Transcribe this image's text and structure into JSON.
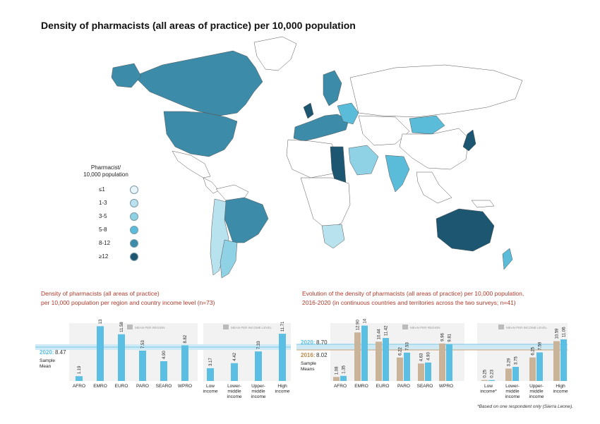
{
  "title": "Density of pharmacists (all areas of practice) per 10,000 population",
  "legend": {
    "title_line1": "Pharmacist/",
    "title_line2": "10,000 population",
    "items": [
      {
        "label": "≤1",
        "color": "#e8f4f8"
      },
      {
        "label": "1-3",
        "color": "#b9e2ef"
      },
      {
        "label": "3-5",
        "color": "#8fd2e6"
      },
      {
        "label": "5-8",
        "color": "#5bbcd9"
      },
      {
        "label": "8-12",
        "color": "#3c8ba8"
      },
      {
        "label": "≥12",
        "color": "#1d5670"
      }
    ]
  },
  "left_panel": {
    "subtitle_line1": "Density of pharmacists (all areas of practice)",
    "subtitle_line2": "per 10,000 population per region and country income level (n=73)",
    "region_icon_label": "MEAN PER REGION",
    "income_icon_label": "MEAN PER INCOME LEVEL",
    "mean_year": "2020:",
    "mean_value": "8.47",
    "mean_label_line1": "Sample",
    "mean_label_line2": "Mean"
  },
  "right_panel": {
    "subtitle_line1": "Evolution of the density of pharmacists (all areas of practice) per 10,000 population,",
    "subtitle_line2": "2016-2020 (in continuous countries and territories across the two surveys; n=41)",
    "region_icon_label": "MEAN PER REGION",
    "income_icon_label": "MEAN PER INCOME LEVEL",
    "mean_2020_year": "2020:",
    "mean_2020_value": "8.70",
    "mean_2016_year": "2016:",
    "mean_2016_value": "8.02",
    "mean_label_line1": "Sample",
    "mean_label_line2": "Means"
  },
  "footnote": "*Based on one respondent only (Sierra Leone).",
  "colors": {
    "bar2020": "#5bbfe3",
    "bar2016": "#c9b49a",
    "mean_band": "#cfeaf5",
    "panel_bg": "#f2f2f2",
    "subtitle": "#b13a2b",
    "year2016": "#c0884a",
    "year2020": "#5bbfe3"
  },
  "chart_data": [
    {
      "type": "bar",
      "title": "Density of pharmacists (all areas of practice) per 10,000 population per region and country income level (n=73)",
      "groups": [
        {
          "categories": [
            "AFRO",
            "EMRO",
            "EURO",
            "PARO",
            "SEARO",
            "WPRO"
          ],
          "values": [
            1.19,
            13.58,
            11.58,
            7.53,
            4.9,
            8.82
          ],
          "labels": [
            "1.19",
            "13.58",
            "11.58",
            "7.53",
            "4.90",
            "8.82"
          ]
        },
        {
          "categories": [
            "Low income",
            "Lower-middle income",
            "Upper-middle income",
            "High income"
          ],
          "values": [
            3.17,
            4.42,
            7.33,
            11.71
          ],
          "labels": [
            "3.17",
            "4.42",
            "7.33",
            "11.71"
          ]
        }
      ],
      "mean": 8.47,
      "ylim": [
        0,
        14
      ]
    },
    {
      "type": "bar",
      "title": "Evolution of the density of pharmacists (all areas of practice) per 10,000 population, 2016-2020 (in continuous countries and territories across the two surveys; n=41)",
      "series_names": [
        "2016",
        "2020"
      ],
      "groups": [
        {
          "categories": [
            "AFRO",
            "EMRO",
            "EURO",
            "PARO",
            "SEARO",
            "WPRO"
          ],
          "series": [
            {
              "name": "2016",
              "values": [
                1.08,
                12.9,
                10.44,
                6.22,
                4.63,
                9.96
              ],
              "labels": [
                "1.08",
                "12.90",
                "10.44",
                "6.22",
                "4.63",
                "9.96"
              ]
            },
            {
              "name": "2020",
              "values": [
                1.35,
                14.71,
                11.42,
                7.53,
                4.9,
                9.81
              ],
              "labels": [
                "1.35",
                "14.71",
                "11.42",
                "7.53",
                "4.90",
                "9.81"
              ]
            }
          ]
        },
        {
          "categories": [
            "Low income*",
            "Lower-middle income",
            "Upper-middle income",
            "High income"
          ],
          "series": [
            {
              "name": "2016",
              "values": [
                0.25,
                3.29,
                6.25,
                10.59
              ],
              "labels": [
                "0.25",
                "3.29",
                "6.25",
                "10.59"
              ]
            },
            {
              "name": "2020",
              "values": [
                0.23,
                3.75,
                7.59,
                11.06
              ],
              "labels": [
                "0.23",
                "3.75",
                "7.59",
                "11.06"
              ]
            }
          ]
        }
      ],
      "mean_2016": 8.02,
      "mean_2020": 8.7,
      "ylim": [
        0,
        15
      ]
    }
  ]
}
